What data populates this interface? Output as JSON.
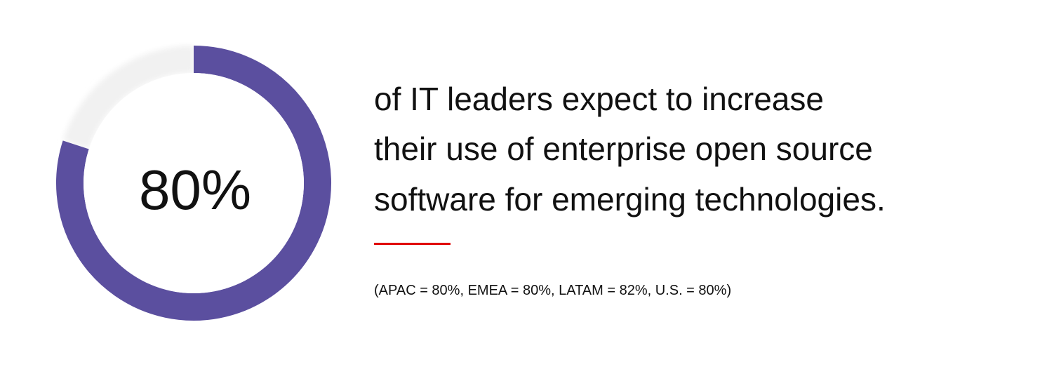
{
  "chart_data": {
    "type": "donut",
    "values": [
      80
    ],
    "value_labels": [
      "80%"
    ],
    "ylim": [
      0,
      100
    ],
    "color": "#5b4f9f",
    "track_color": "#f1f1f1",
    "text_lines": [
      "of IT leaders expect to increase",
      "their use of enterprise open source",
      "software for emerging technologies."
    ],
    "divider_color": "#e00000",
    "note": "(APAC = 80%, EMEA = 80%, LATAM = 82%, U.S. = 80%)"
  }
}
